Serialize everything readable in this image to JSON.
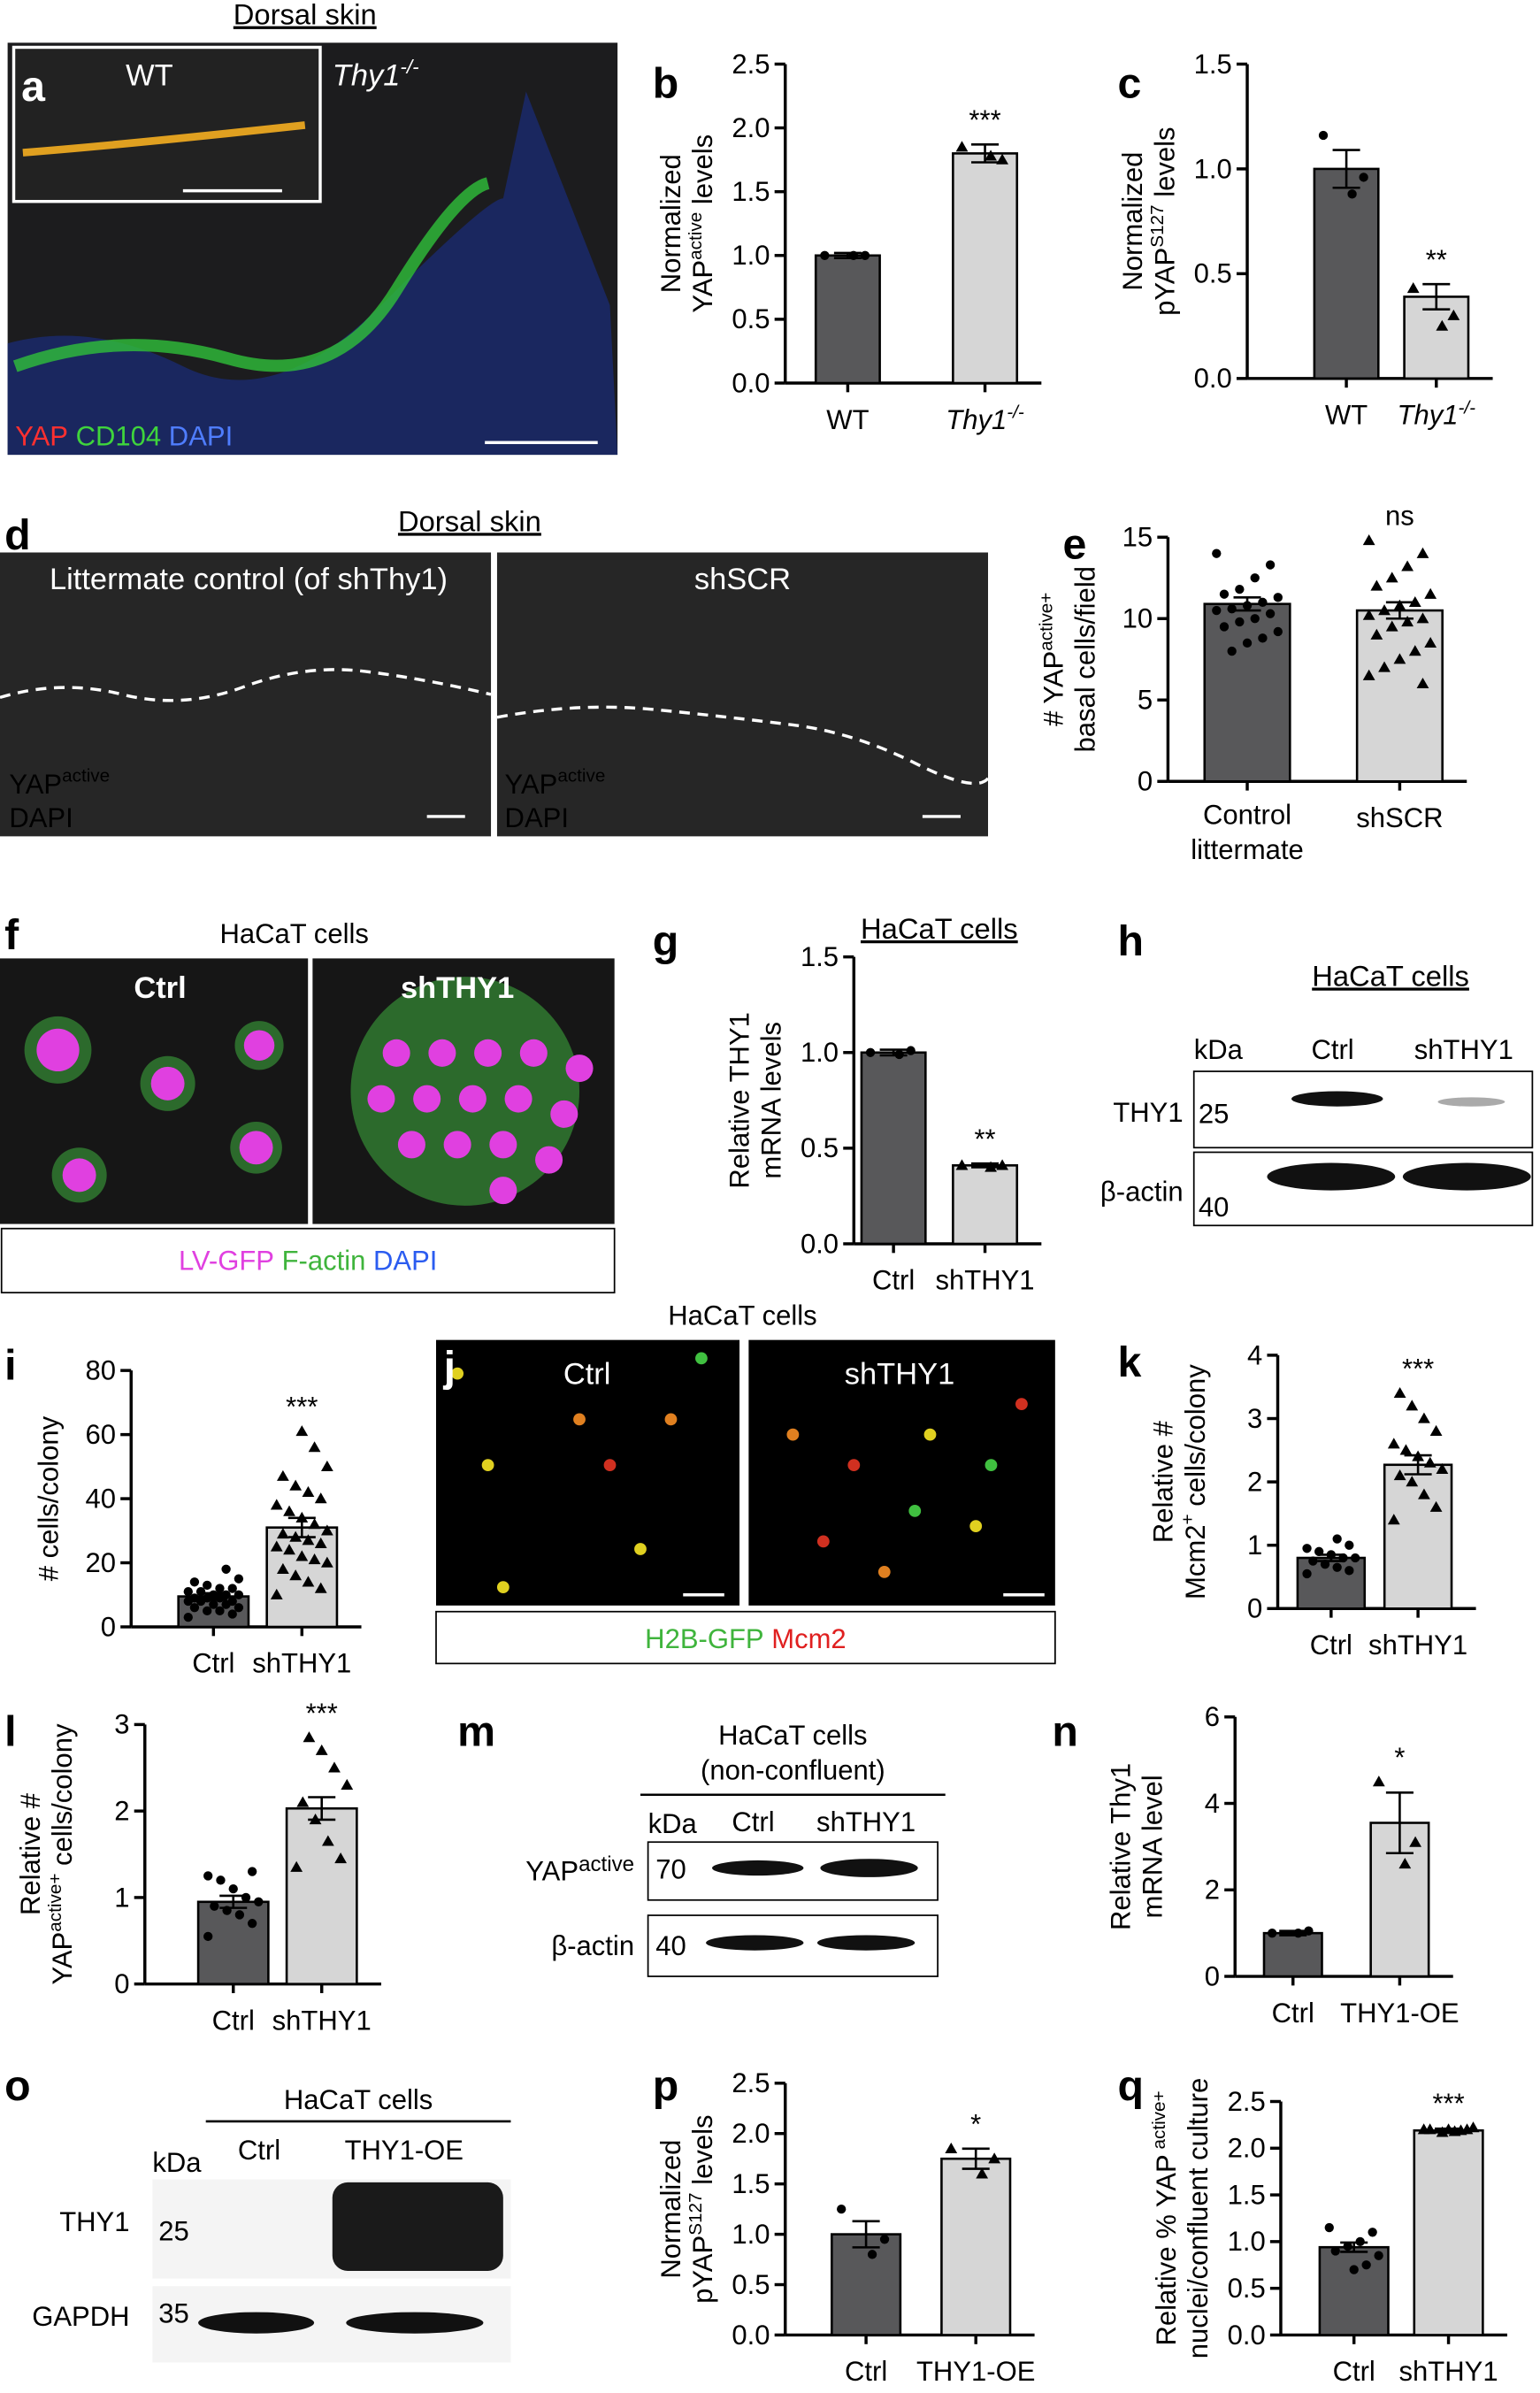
{
  "figure": {
    "letters": [
      "a",
      "b",
      "c",
      "d",
      "e",
      "f",
      "g",
      "h",
      "i",
      "j",
      "k",
      "l",
      "m",
      "n",
      "o",
      "p",
      "q"
    ],
    "a": {
      "title": "Dorsal skin",
      "inset": "WT",
      "genotype": [
        {
          "text": "Thy1",
          "italic": true
        },
        {
          "text": "-/-",
          "sup": true,
          "italic": true
        }
      ],
      "legend": [
        "YAP",
        " CD104",
        " DAPI"
      ]
    },
    "d": {
      "title": "Dorsal skin",
      "left": "Littermate control (of shThy1)",
      "right": "shSCR",
      "stain": [
        {
          "text": "YAP"
        },
        {
          "text": "active",
          "sup": true
        }
      ],
      "dapi": "DAPI"
    },
    "f": {
      "title": "HaCaT cells",
      "left": "Ctrl",
      "right": "shTHY1",
      "legend": [
        "LV-GFP",
        " F-actin",
        " DAPI"
      ]
    },
    "h": {
      "title": "HaCaT cells",
      "kda": "kDa",
      "lanes": [
        "Ctrl",
        "shTHY1"
      ],
      "rows": [
        "THY1",
        "β-actin"
      ],
      "sizes": [
        "25",
        "40"
      ]
    },
    "j": {
      "title": "HaCaT cells",
      "left": "Ctrl",
      "right": "shTHY1",
      "legend": [
        "H2B-GFP",
        " Mcm2"
      ]
    },
    "m": {
      "title": [
        "HaCaT cells",
        "(non-confluent)"
      ],
      "kda": "kDa",
      "lanes": [
        "Ctrl",
        "shTHY1"
      ],
      "rows": [
        [
          {
            "text": "YAP"
          },
          {
            "text": "active",
            "sup": true
          }
        ],
        [
          {
            "text": "β-actin"
          }
        ]
      ],
      "sizes": [
        "70",
        "40"
      ]
    },
    "o": {
      "title": "HaCaT cells",
      "kda": "kDa",
      "lanes": [
        "Ctrl",
        "THY1-OE"
      ],
      "rows": [
        "THY1",
        "GAPDH"
      ],
      "sizes": [
        "25",
        "35"
      ]
    }
  },
  "chart_data": [
    {
      "type": "bar",
      "ylabel": [
        [
          {
            "text": "Normalized"
          }
        ],
        [
          {
            "text": "YAP"
          },
          {
            "text": "active",
            "sup": true
          },
          {
            "text": " levels"
          }
        ]
      ],
      "categories": [
        "WT",
        [
          {
            "text": "Thy1",
            "italic": true
          },
          {
            "text": "-/-",
            "sup": true,
            "italic": true
          }
        ]
      ],
      "values": [
        1.0,
        1.8
      ],
      "errors": [
        0.02,
        0.07
      ],
      "colors": [
        "#58585a",
        "#d6d6d6"
      ],
      "markers": [
        "circle",
        "triangle"
      ],
      "points": [
        [
          1.0,
          1.0,
          1.0
        ],
        [
          1.85,
          1.75,
          1.78
        ]
      ],
      "significance": [
        null,
        "***"
      ],
      "ylim": [
        0,
        2.5
      ],
      "yticks": [
        {
          "value": 0,
          "label": "0.0"
        },
        {
          "value": 0.5,
          "label": "0.5"
        },
        {
          "value": 1,
          "label": "1.0"
        },
        {
          "value": 1.5,
          "label": "1.5"
        },
        {
          "value": 2,
          "label": "2.0"
        },
        {
          "value": 2.5,
          "label": "2.5"
        }
      ]
    },
    {
      "type": "bar",
      "ylabel": [
        [
          {
            "text": "Normalized"
          }
        ],
        [
          {
            "text": "pYAP"
          },
          {
            "text": "S127",
            "sup": true
          },
          {
            "text": " levels"
          }
        ]
      ],
      "categories": [
        "WT",
        [
          {
            "text": "Thy1",
            "italic": true
          },
          {
            "text": "-/-",
            "sup": true,
            "italic": true
          }
        ]
      ],
      "values": [
        1.0,
        0.39
      ],
      "errors": [
        0.09,
        0.06
      ],
      "colors": [
        "#58585a",
        "#d6d6d6"
      ],
      "markers": [
        "circle",
        "triangle"
      ],
      "points": [
        [
          1.16,
          0.96,
          0.88
        ],
        [
          0.43,
          0.3,
          0.25
        ]
      ],
      "significance": [
        null,
        "**"
      ],
      "ylim": [
        0,
        1.5
      ],
      "yticks": [
        {
          "value": 0,
          "label": "0.0"
        },
        {
          "value": 0.5,
          "label": "0.5"
        },
        {
          "value": 1,
          "label": "1.0"
        },
        {
          "value": 1.5,
          "label": "1.5"
        }
      ]
    },
    {
      "type": "bar",
      "ylabel": [
        [
          {
            "text": "# YAP"
          },
          {
            "text": "active+",
            "sup": true
          }
        ],
        [
          {
            "text": "basal cells/field"
          }
        ]
      ],
      "categories": [
        {
          "lines": [
            "Control",
            "littermate"
          ]
        },
        "shSCR"
      ],
      "values": [
        10.9,
        10.5
      ],
      "errors": [
        0.4,
        0.5
      ],
      "colors": [
        "#58585a",
        "#d6d6d6"
      ],
      "markers": [
        "circle",
        "triangle"
      ],
      "points": [
        [
          14,
          13.3,
          12.5,
          11.8,
          11.5,
          11.3,
          11,
          10.8,
          10.6,
          10.5,
          10.3,
          10,
          9.8,
          9.5,
          9.2,
          8.8,
          8.5,
          8
        ],
        [
          14.8,
          14,
          13.2,
          12.5,
          12,
          11.5,
          11,
          10.8,
          10.5,
          10.2,
          10,
          9.8,
          9.5,
          9,
          8.5,
          8,
          7.5,
          7,
          6.5,
          6
        ]
      ],
      "significance": [
        null,
        "ns"
      ],
      "ylim": [
        0,
        15
      ],
      "yticks": [
        0,
        5,
        10,
        15
      ]
    },
    {
      "type": "bar",
      "title": "HaCaT cells",
      "ylabel": [
        [
          {
            "text": "Relative THY1"
          }
        ],
        [
          {
            "text": "mRNA levels"
          }
        ]
      ],
      "categories": [
        "Ctrl",
        "shTHY1"
      ],
      "values": [
        1.0,
        0.41
      ],
      "errors": [
        0.015,
        0.01
      ],
      "colors": [
        "#58585a",
        "#d6d6d6"
      ],
      "markers": [
        "circle",
        "triangle"
      ],
      "points": [
        [
          1.0,
          1.01,
          0.99
        ],
        [
          0.41,
          0.41,
          0.4
        ]
      ],
      "significance": [
        null,
        "**"
      ],
      "ylim": [
        0,
        1.5
      ],
      "yticks": [
        {
          "value": 0,
          "label": "0.0"
        },
        {
          "value": 0.5,
          "label": "0.5"
        },
        {
          "value": 1,
          "label": "1.0"
        },
        {
          "value": 1.5,
          "label": "1.5"
        }
      ]
    },
    {
      "type": "bar",
      "ylabel": [
        [
          {
            "text": "# cells/colony"
          }
        ]
      ],
      "categories": [
        "Ctrl",
        "shTHY1"
      ],
      "values": [
        9.5,
        31
      ],
      "errors": [
        1,
        3
      ],
      "colors": [
        "#58585a",
        "#d6d6d6"
      ],
      "markers": [
        "circle",
        "triangle"
      ],
      "points": [
        [
          3,
          4,
          5,
          5,
          6,
          6,
          7,
          7,
          8,
          8,
          8,
          9,
          9,
          9,
          10,
          10,
          10,
          11,
          11,
          12,
          12,
          13,
          14,
          15,
          18
        ],
        [
          10,
          12,
          14,
          16,
          18,
          20,
          21,
          22,
          24,
          25,
          26,
          27,
          28,
          29,
          30,
          32,
          34,
          36,
          38,
          40,
          42,
          44,
          47,
          50,
          56,
          61
        ]
      ],
      "significance": [
        null,
        "***"
      ],
      "ylim": [
        0,
        80
      ],
      "yticks": [
        0,
        20,
        40,
        60,
        80
      ]
    },
    {
      "type": "bar",
      "ylabel": [
        [
          {
            "text": "Relative #"
          }
        ],
        [
          {
            "text": "Mcm2"
          },
          {
            "text": "+",
            "sup": true
          },
          {
            "text": " cells/colony"
          }
        ]
      ],
      "categories": [
        "Ctrl",
        "shTHY1"
      ],
      "values": [
        0.8,
        2.27
      ],
      "errors": [
        0.05,
        0.15
      ],
      "colors": [
        "#58585a",
        "#d6d6d6"
      ],
      "markers": [
        "circle",
        "triangle"
      ],
      "points": [
        [
          0.55,
          0.6,
          0.65,
          0.7,
          0.75,
          0.8,
          0.8,
          0.85,
          0.9,
          0.95,
          1.0,
          1.1
        ],
        [
          1.4,
          1.6,
          1.8,
          2.0,
          2.1,
          2.2,
          2.3,
          2.4,
          2.5,
          2.6,
          2.8,
          3.0,
          3.2,
          3.4
        ]
      ],
      "significance": [
        null,
        "***"
      ],
      "ylim": [
        0,
        4
      ],
      "yticks": [
        0,
        1,
        2,
        3,
        4
      ]
    },
    {
      "type": "bar",
      "ylabel": [
        [
          {
            "text": "Relative #"
          }
        ],
        [
          {
            "text": "YAP"
          },
          {
            "text": "active+",
            "sup": true
          },
          {
            "text": " cells/colony"
          }
        ]
      ],
      "categories": [
        "Ctrl",
        "shTHY1"
      ],
      "values": [
        0.95,
        2.03
      ],
      "errors": [
        0.07,
        0.13
      ],
      "colors": [
        "#58585a",
        "#d6d6d6"
      ],
      "markers": [
        "circle",
        "triangle"
      ],
      "points": [
        [
          0.55,
          0.7,
          0.8,
          0.85,
          0.9,
          0.95,
          1.0,
          1.1,
          1.2,
          1.25,
          1.3
        ],
        [
          1.35,
          1.45,
          1.65,
          1.9,
          2.1,
          2.3,
          2.5,
          2.7,
          2.85
        ]
      ],
      "significance": [
        null,
        "***"
      ],
      "ylim": [
        0,
        3
      ],
      "yticks": [
        0,
        1,
        2,
        3
      ]
    },
    {
      "type": "bar",
      "ylabel": [
        [
          {
            "text": "Relative Thy1"
          }
        ],
        [
          {
            "text": "mRNA level"
          }
        ]
      ],
      "categories": [
        "Ctrl",
        "THY1-OE"
      ],
      "values": [
        1.0,
        3.55
      ],
      "errors": [
        0.05,
        0.7
      ],
      "colors": [
        "#58585a",
        "#d6d6d6"
      ],
      "markers": [
        "circle",
        "triangle"
      ],
      "points": [
        [
          1.0,
          1.05,
          1.0
        ],
        [
          4.5,
          3.1,
          2.6
        ]
      ],
      "significance": [
        null,
        "*"
      ],
      "ylim": [
        0,
        6
      ],
      "yticks": [
        0,
        2,
        4,
        6
      ]
    },
    {
      "type": "bar",
      "ylabel": [
        [
          {
            "text": "Normalized"
          }
        ],
        [
          {
            "text": "pYAP"
          },
          {
            "text": "S127",
            "sup": true
          },
          {
            "text": " levels"
          }
        ]
      ],
      "categories": [
        "Ctrl",
        "THY1-OE"
      ],
      "values": [
        1.0,
        1.75
      ],
      "errors": [
        0.13,
        0.1
      ],
      "colors": [
        "#58585a",
        "#d6d6d6"
      ],
      "markers": [
        "circle",
        "triangle"
      ],
      "points": [
        [
          1.25,
          0.95,
          0.8
        ],
        [
          1.85,
          1.75,
          1.6
        ]
      ],
      "significance": [
        null,
        "*"
      ],
      "ylim": [
        0,
        2.5
      ],
      "yticks": [
        {
          "value": 0,
          "label": "0.0"
        },
        {
          "value": 0.5,
          "label": "0.5"
        },
        {
          "value": 1,
          "label": "1.0"
        },
        {
          "value": 1.5,
          "label": "1.5"
        },
        {
          "value": 2,
          "label": "2.0"
        },
        {
          "value": 2.5,
          "label": "2.5"
        }
      ]
    },
    {
      "type": "bar",
      "ylabel": [
        [
          {
            "text": "Relative % YAP"
          },
          {
            "text": " active+",
            "sup": true
          }
        ],
        [
          {
            "text": "nuclei/confluent culture"
          }
        ]
      ],
      "categories": [
        "Ctrl",
        "shTHY1"
      ],
      "values": [
        0.94,
        2.19
      ],
      "errors": [
        0.05,
        0.02
      ],
      "colors": [
        "#58585a",
        "#d6d6d6"
      ],
      "markers": [
        "circle",
        "triangle"
      ],
      "points": [
        [
          1.15,
          1.1,
          1.0,
          0.95,
          0.9,
          0.85,
          0.75,
          0.7
        ],
        [
          2.2,
          2.2,
          2.18,
          2.17,
          2.2,
          2.22,
          2.19,
          2.2
        ]
      ],
      "significance": [
        null,
        "***"
      ],
      "ylim": [
        0,
        2.5
      ],
      "yticks": [
        {
          "value": 0,
          "label": "0.0"
        },
        {
          "value": 0.5,
          "label": "0.5"
        },
        {
          "value": 1,
          "label": "1.0"
        },
        {
          "value": 1.5,
          "label": "1.5"
        },
        {
          "value": 2,
          "label": "2.0"
        },
        {
          "value": 2.5,
          "label": "2.5"
        }
      ]
    }
  ]
}
